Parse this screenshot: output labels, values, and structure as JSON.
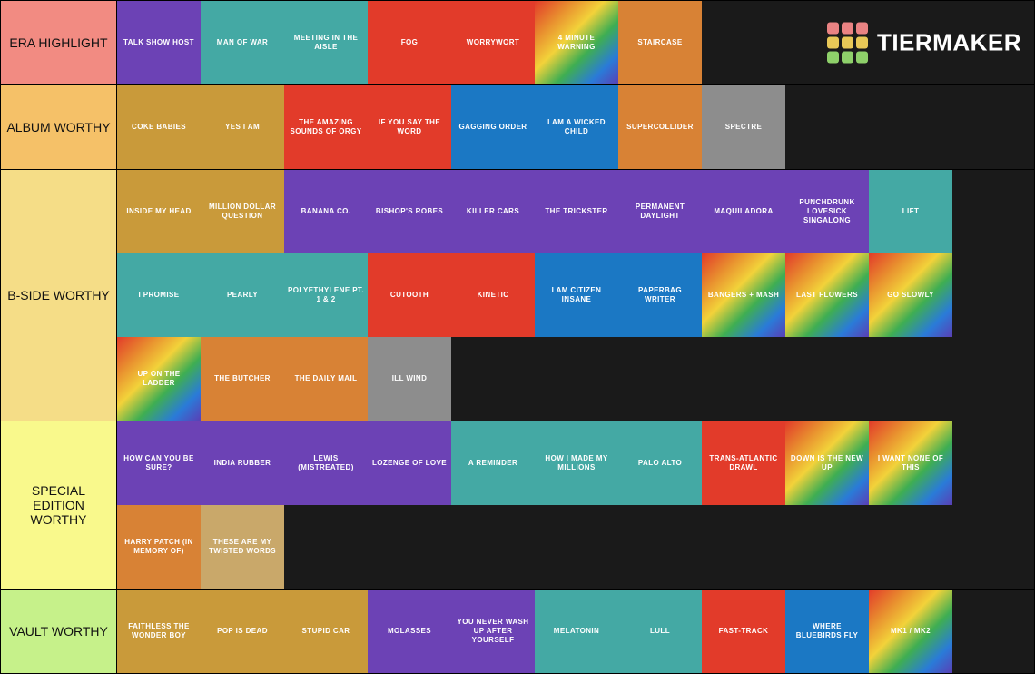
{
  "brand": {
    "name": "TIERMAKER"
  },
  "logo_colors": [
    "#ea8383",
    "#ea8383",
    "#ea8383",
    "#e8c857",
    "#e8c857",
    "#e8c857",
    "#8ed06a",
    "#8ed06a",
    "#8ed06a"
  ],
  "tile_bg_classes": {
    "yellow": "bg-yellow",
    "darkyellow": "bg-darkyellow",
    "purple": "bg-purple",
    "teal": "bg-teal",
    "red": "bg-red",
    "blue": "bg-blue",
    "orange": "bg-orange",
    "grey": "bg-grey",
    "tan": "bg-tan",
    "rainbow": "bg-rainbow"
  },
  "tiers": [
    {
      "label": "ERA HIGHLIGHT",
      "label_bg": "#f28b82",
      "items": [
        {
          "text": "TALK SHOW HOST",
          "bg": "purple"
        },
        {
          "text": "MAN OF WAR",
          "bg": "teal"
        },
        {
          "text": "MEETING IN THE AISLE",
          "bg": "teal"
        },
        {
          "text": "FOG",
          "bg": "red"
        },
        {
          "text": "WORRYWORT",
          "bg": "red"
        },
        {
          "text": "4 MINUTE WARNING",
          "bg": "rainbow"
        },
        {
          "text": "STAIRCASE",
          "bg": "orange"
        }
      ]
    },
    {
      "label": "ALBUM WORTHY",
      "label_bg": "#f5c168",
      "items": [
        {
          "text": "COKE BABIES",
          "bg": "darkyellow"
        },
        {
          "text": "YES I AM",
          "bg": "darkyellow"
        },
        {
          "text": "THE AMAZING SOUNDS OF ORGY",
          "bg": "red"
        },
        {
          "text": "IF YOU SAY THE WORD",
          "bg": "red"
        },
        {
          "text": "GAGGING ORDER",
          "bg": "blue"
        },
        {
          "text": "I AM A WICKED CHILD",
          "bg": "blue"
        },
        {
          "text": "SUPERCOLLIDER",
          "bg": "orange"
        },
        {
          "text": "SPECTRE",
          "bg": "grey"
        }
      ]
    },
    {
      "label": "B-SIDE WORTHY",
      "label_bg": "#f5dd87",
      "items": [
        {
          "text": "INSIDE MY HEAD",
          "bg": "darkyellow"
        },
        {
          "text": "MILLION DOLLAR QUESTION",
          "bg": "darkyellow"
        },
        {
          "text": "BANANA CO.",
          "bg": "purple"
        },
        {
          "text": "BISHOP'S ROBES",
          "bg": "purple"
        },
        {
          "text": "KILLER CARS",
          "bg": "purple"
        },
        {
          "text": "THE TRICKSTER",
          "bg": "purple"
        },
        {
          "text": "PERMANENT DAYLIGHT",
          "bg": "purple"
        },
        {
          "text": "MAQUILADORA",
          "bg": "purple"
        },
        {
          "text": "PUNCHDRUNK LOVESICK SINGALONG",
          "bg": "purple"
        },
        {
          "text": "LIFT",
          "bg": "teal"
        },
        {
          "text": "I PROMISE",
          "bg": "teal"
        },
        {
          "text": "PEARLY",
          "bg": "teal"
        },
        {
          "text": "POLYETHYLENE PT. 1 & 2",
          "bg": "teal"
        },
        {
          "text": "CUTOOTH",
          "bg": "red"
        },
        {
          "text": "KINETIC",
          "bg": "red"
        },
        {
          "text": "I AM CITIZEN INSANE",
          "bg": "blue"
        },
        {
          "text": "PAPERBAG WRITER",
          "bg": "blue"
        },
        {
          "text": "BANGERS + MASH",
          "bg": "rainbow"
        },
        {
          "text": "LAST FLOWERS",
          "bg": "rainbow"
        },
        {
          "text": "GO SLOWLY",
          "bg": "rainbow"
        },
        {
          "text": "UP ON THE LADDER",
          "bg": "rainbow"
        },
        {
          "text": "THE BUTCHER",
          "bg": "orange"
        },
        {
          "text": "THE DAILY MAIL",
          "bg": "orange"
        },
        {
          "text": "ILL WIND",
          "bg": "grey"
        }
      ]
    },
    {
      "label": "SPECIAL EDITION WORTHY",
      "label_bg": "#f9f98c",
      "items": [
        {
          "text": "HOW CAN YOU BE SURE?",
          "bg": "purple"
        },
        {
          "text": "INDIA RUBBER",
          "bg": "purple"
        },
        {
          "text": "LEWIS (MISTREATED)",
          "bg": "purple"
        },
        {
          "text": "LOZENGE OF LOVE",
          "bg": "purple"
        },
        {
          "text": "A REMINDER",
          "bg": "teal"
        },
        {
          "text": "HOW I MADE MY MILLIONS",
          "bg": "teal"
        },
        {
          "text": "PALO ALTO",
          "bg": "teal"
        },
        {
          "text": "TRANS-ATLANTIC DRAWL",
          "bg": "red"
        },
        {
          "text": "DOWN IS THE NEW UP",
          "bg": "rainbow"
        },
        {
          "text": "I WANT NONE OF THIS",
          "bg": "rainbow"
        },
        {
          "text": "HARRY PATCH (IN MEMORY OF)",
          "bg": "orange"
        },
        {
          "text": "THESE ARE MY TWISTED WORDS",
          "bg": "tan"
        }
      ]
    },
    {
      "label": "VAULT WORTHY",
      "label_bg": "#c6f18a",
      "items": [
        {
          "text": "FAITHLESS THE WONDER BOY",
          "bg": "darkyellow"
        },
        {
          "text": "POP IS DEAD",
          "bg": "darkyellow"
        },
        {
          "text": "STUPID CAR",
          "bg": "darkyellow"
        },
        {
          "text": "MOLASSES",
          "bg": "purple"
        },
        {
          "text": "YOU NEVER WASH UP AFTER YOURSELF",
          "bg": "purple"
        },
        {
          "text": "MELATONIN",
          "bg": "teal"
        },
        {
          "text": "LULL",
          "bg": "teal"
        },
        {
          "text": "FAST-TRACK",
          "bg": "red"
        },
        {
          "text": "WHERE BLUEBIRDS FLY",
          "bg": "blue"
        },
        {
          "text": "MK1 / MK2",
          "bg": "rainbow"
        }
      ]
    }
  ]
}
